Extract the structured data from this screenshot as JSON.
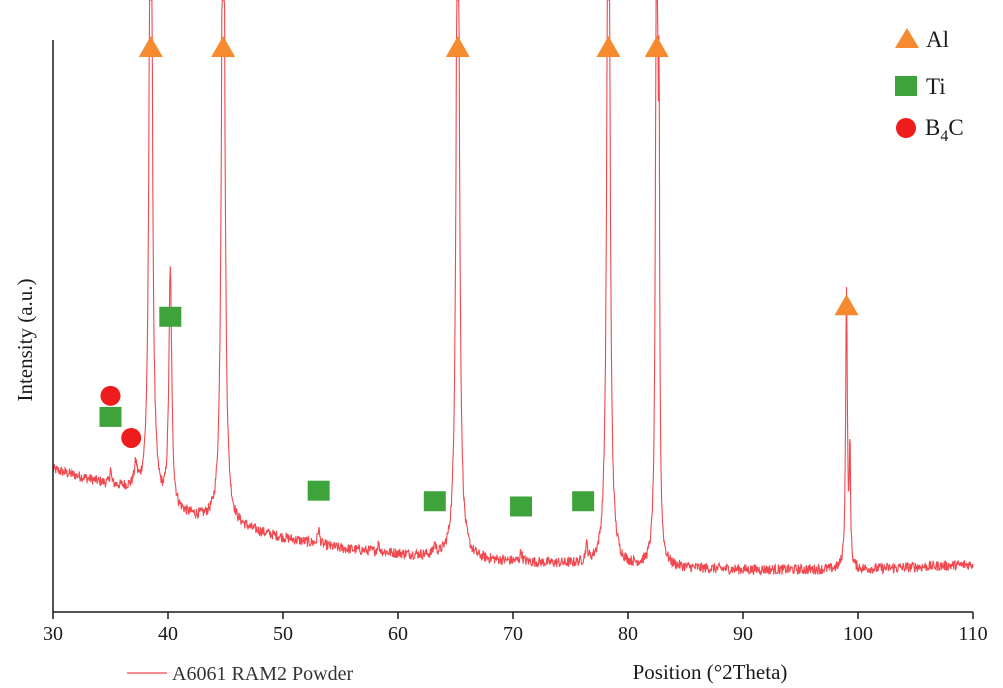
{
  "chart_data": {
    "type": "line",
    "xlabel": "Position (°2Theta)",
    "ylabel": "Intensity (a.u.)",
    "xlim": [
      30,
      110
    ],
    "x_ticks": [
      30,
      40,
      50,
      60,
      70,
      80,
      90,
      100,
      110
    ],
    "y_ticks_shown": false,
    "grid": false,
    "colors": {
      "line": "#f0484e",
      "al": "#f58a2f",
      "ti": "#3fa33c",
      "b4c": "#ee1c1c",
      "axis": "#1a1a1a"
    },
    "series": [
      {
        "name": "A6061 RAM2 Powder",
        "baseline": [
          [
            30,
            0.2
          ],
          [
            35,
            0.17
          ],
          [
            37,
            0.16
          ],
          [
            40,
            0.12
          ],
          [
            44,
            0.1
          ],
          [
            46,
            0.09
          ],
          [
            50,
            0.07
          ],
          [
            55,
            0.05
          ],
          [
            60,
            0.04
          ],
          [
            65,
            0.03
          ],
          [
            70,
            0.025
          ],
          [
            80,
            0.015
          ],
          [
            90,
            0.01
          ],
          [
            100,
            0.01
          ],
          [
            110,
            0.02
          ]
        ],
        "peaks": [
          {
            "x": 35.0,
            "height": 0.03,
            "width": 0.15
          },
          {
            "x": 37.2,
            "height": 0.04,
            "width": 0.3
          },
          {
            "x": 38.5,
            "height": 1.6,
            "width": 0.28
          },
          {
            "x": 40.2,
            "height": 0.45,
            "width": 0.3
          },
          {
            "x": 44.8,
            "height": 1.6,
            "width": 0.3
          },
          {
            "x": 53.1,
            "height": 0.03,
            "width": 0.2
          },
          {
            "x": 58.3,
            "height": 0.015,
            "width": 0.2
          },
          {
            "x": 63.2,
            "height": 0.02,
            "width": 0.2
          },
          {
            "x": 65.2,
            "height": 1.6,
            "width": 0.3
          },
          {
            "x": 70.7,
            "height": 0.02,
            "width": 0.2
          },
          {
            "x": 76.4,
            "height": 0.03,
            "width": 0.25
          },
          {
            "x": 78.3,
            "height": 1.6,
            "width": 0.3
          },
          {
            "x": 82.5,
            "height": 1.6,
            "width": 0.2
          },
          {
            "x": 82.7,
            "height": 0.7,
            "width": 0.12
          },
          {
            "x": 99.0,
            "height": 0.52,
            "width": 0.18
          },
          {
            "x": 99.3,
            "height": 0.22,
            "width": 0.12
          }
        ]
      }
    ],
    "phase_markers": {
      "Al": [
        {
          "x": 38.5,
          "y": 1.0
        },
        {
          "x": 44.8,
          "y": 1.0
        },
        {
          "x": 65.2,
          "y": 1.0
        },
        {
          "x": 78.3,
          "y": 1.0
        },
        {
          "x": 82.5,
          "y": 1.0
        },
        {
          "x": 99.0,
          "y": 0.51
        }
      ],
      "Ti": [
        {
          "x": 35.0,
          "y": 0.3
        },
        {
          "x": 40.2,
          "y": 0.49
        },
        {
          "x": 53.1,
          "y": 0.16
        },
        {
          "x": 63.2,
          "y": 0.14
        },
        {
          "x": 70.7,
          "y": 0.13
        },
        {
          "x": 76.1,
          "y": 0.14
        }
      ],
      "B4C": [
        {
          "x": 35.0,
          "y": 0.34
        },
        {
          "x": 36.8,
          "y": 0.26
        }
      ]
    },
    "legend": {
      "placement": "top-right",
      "entries": [
        {
          "key": "Al",
          "marker": "triangle",
          "label": "Al"
        },
        {
          "key": "Ti",
          "marker": "square",
          "label": "Ti"
        },
        {
          "key": "B4C",
          "marker": "circle",
          "label_main": "B",
          "label_sub": "4",
          "label_tail": "C"
        }
      ]
    },
    "series_label_placement": "bottom-left"
  }
}
